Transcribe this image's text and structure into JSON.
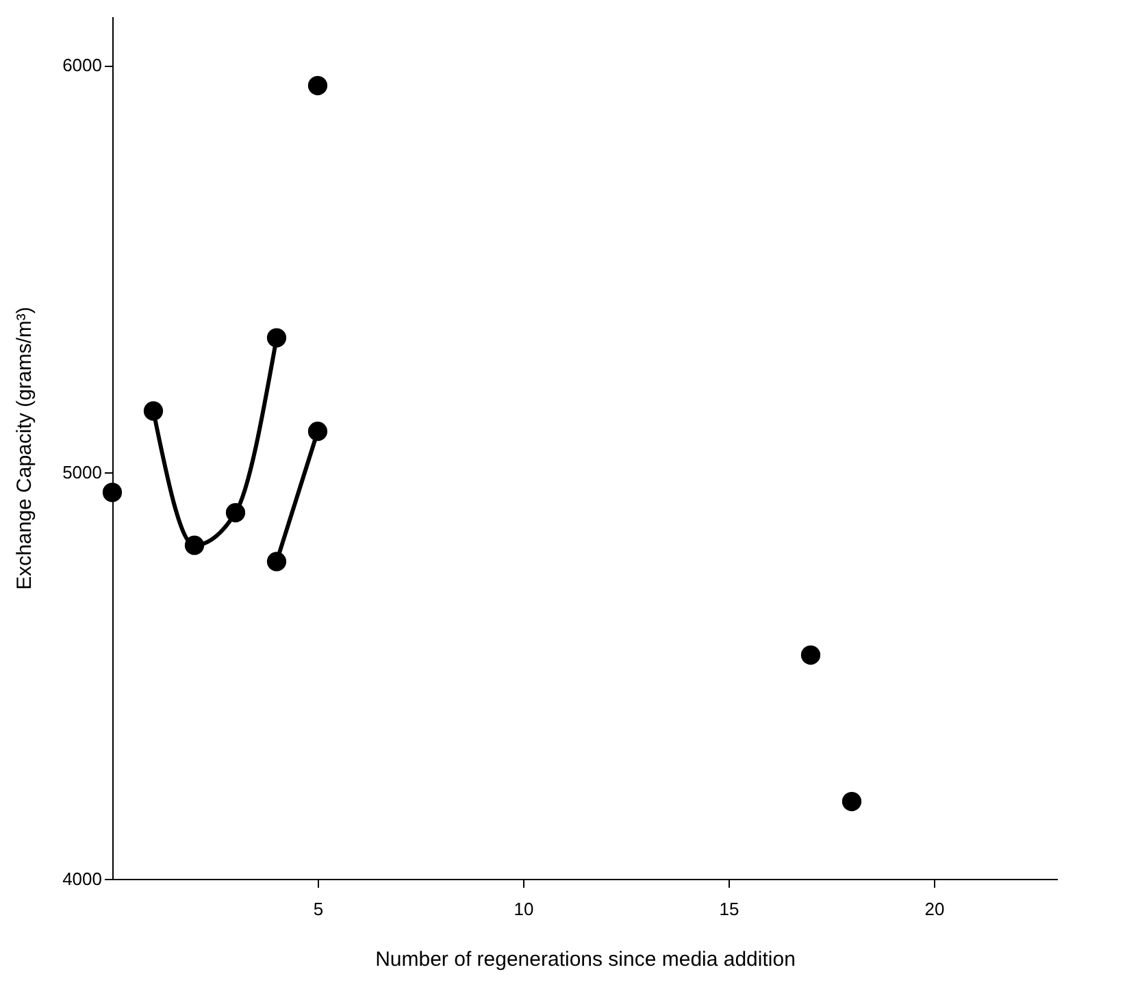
{
  "chart_data": {
    "type": "scatter",
    "xlabel": "Number of regenerations since media addition",
    "ylabel": "Exchange Capacity (grams/m³)",
    "xlim": [
      0,
      23
    ],
    "ylim": [
      4000,
      6120
    ],
    "xticks": [
      5,
      10,
      15,
      20
    ],
    "yticks": [
      4000,
      5000,
      6000
    ],
    "grid": false,
    "marker": "circle",
    "series": [
      {
        "color": "#000000",
        "x": [
          0,
          1,
          2,
          3,
          4,
          4,
          5,
          5,
          17,
          18
        ],
        "values": [
          4950,
          5150,
          4820,
          4900,
          5330,
          4780,
          5100,
          5950,
          4550,
          4190
        ]
      },
      {
        "type": "line",
        "color": "#000000",
        "line_style": "solid",
        "marker": "none",
        "x": [
          1,
          2,
          3,
          4
        ],
        "values": [
          5150,
          4820,
          4900,
          5330
        ]
      },
      {
        "type": "line",
        "color": "#000000",
        "line_style": "solid",
        "marker": "none",
        "x": [
          4,
          5
        ],
        "values": [
          4780,
          5100
        ]
      }
    ]
  }
}
